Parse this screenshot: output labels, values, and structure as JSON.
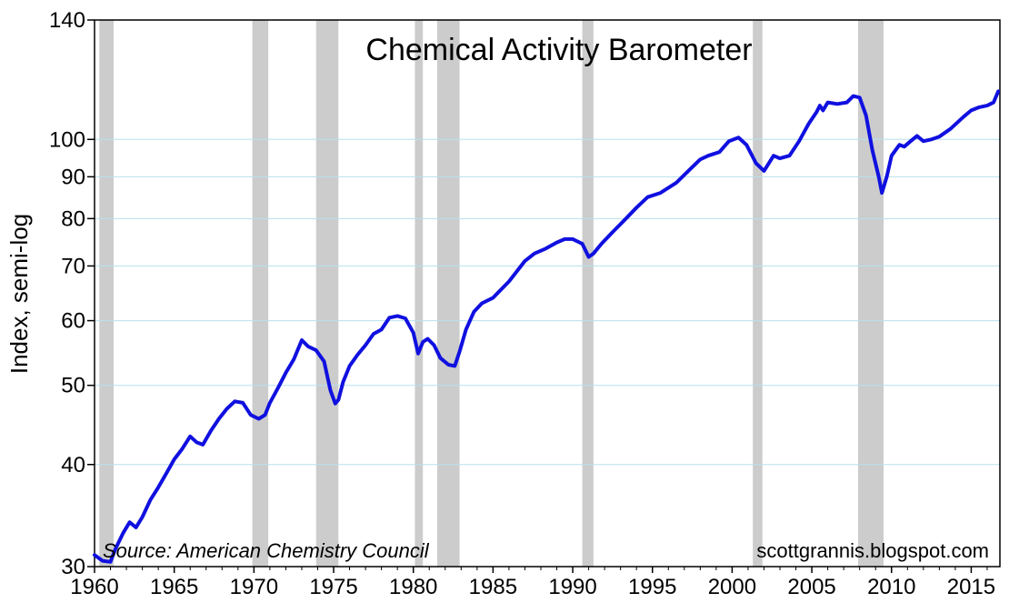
{
  "chart_data": {
    "type": "line",
    "title": "Chemical Activity Barometer",
    "ylabel": "Index, semi-log",
    "xlabel": "",
    "y_scale": "log",
    "ylim": [
      30,
      140
    ],
    "xlim": [
      1960,
      2016.8
    ],
    "y_ticks": [
      30,
      40,
      50,
      60,
      70,
      80,
      90,
      100,
      140
    ],
    "x_ticks": [
      1960,
      1965,
      1970,
      1975,
      1980,
      1985,
      1990,
      1995,
      2000,
      2005,
      2010,
      2015
    ],
    "grid": "horizontal",
    "line_color": "#1010e0",
    "shading_color": "#cccccc",
    "annotations": {
      "source": "Source: American Chemistry Council",
      "credit": "scottgrannis.blogspot.com"
    },
    "recession_periods": [
      [
        1960.3,
        1961.2
      ],
      [
        1969.9,
        1970.9
      ],
      [
        1973.9,
        1975.3
      ],
      [
        1980.1,
        1980.6
      ],
      [
        1981.5,
        1982.9
      ],
      [
        1990.6,
        1991.3
      ],
      [
        2001.3,
        2001.9
      ],
      [
        2007.9,
        2009.5
      ]
    ],
    "series": [
      {
        "x": [
          1960.0,
          1960.5,
          1961.0,
          1961.3,
          1961.8,
          1962.2,
          1962.6,
          1963.0,
          1963.5,
          1964.0,
          1964.5,
          1965.0,
          1965.5,
          1966.0,
          1966.4,
          1966.8,
          1967.3,
          1967.8,
          1968.3,
          1968.8,
          1969.3,
          1969.8,
          1970.3,
          1970.7,
          1971.0,
          1971.5,
          1972.0,
          1972.5,
          1973.0,
          1973.4,
          1973.9,
          1974.4,
          1974.8,
          1975.1,
          1975.3,
          1975.6,
          1976.0,
          1976.5,
          1977.0,
          1977.5,
          1978.0,
          1978.5,
          1979.0,
          1979.5,
          1980.0,
          1980.3,
          1980.6,
          1980.9,
          1981.3,
          1981.7,
          1982.2,
          1982.6,
          1982.9,
          1983.3,
          1983.8,
          1984.3,
          1985.0,
          1986.0,
          1987.0,
          1987.6,
          1988.3,
          1989.0,
          1989.5,
          1990.0,
          1990.6,
          1991.0,
          1991.3,
          1991.8,
          1992.5,
          1993.2,
          1994.0,
          1994.7,
          1995.5,
          1996.5,
          1997.5,
          1998.0,
          1998.5,
          1999.2,
          1999.8,
          2000.4,
          2000.9,
          2001.5,
          2002.0,
          2002.6,
          2003.0,
          2003.6,
          2004.2,
          2004.8,
          2005.3,
          2005.5,
          2005.7,
          2006.0,
          2006.6,
          2007.2,
          2007.6,
          2008.0,
          2008.4,
          2008.8,
          2009.2,
          2009.4,
          2009.7,
          2010.0,
          2010.5,
          2010.8,
          2011.2,
          2011.6,
          2012.0,
          2012.5,
          2013.0,
          2013.7,
          2014.5,
          2015.0,
          2015.5,
          2016.0,
          2016.4,
          2016.7
        ],
        "values": [
          31.0,
          30.5,
          30.4,
          31.5,
          33.0,
          34.0,
          33.5,
          34.5,
          36.2,
          37.5,
          39.0,
          40.6,
          41.8,
          43.3,
          42.6,
          42.3,
          44.0,
          45.5,
          46.8,
          47.8,
          47.6,
          46.0,
          45.5,
          46.0,
          47.6,
          49.6,
          51.8,
          53.8,
          56.8,
          55.8,
          55.2,
          53.5,
          49.3,
          47.5,
          48.0,
          50.5,
          52.8,
          54.5,
          56.0,
          57.8,
          58.5,
          60.5,
          60.8,
          60.4,
          58.0,
          54.7,
          56.5,
          57.0,
          56.0,
          54.0,
          53.0,
          52.8,
          55.0,
          58.5,
          61.5,
          63.0,
          64.0,
          67.0,
          71.0,
          72.5,
          73.5,
          74.8,
          75.5,
          75.5,
          74.5,
          71.8,
          72.5,
          74.5,
          77.0,
          79.5,
          82.5,
          85.0,
          86.0,
          88.5,
          92.5,
          94.5,
          95.5,
          96.5,
          99.5,
          100.5,
          98.5,
          93.5,
          91.5,
          95.5,
          94.8,
          95.5,
          99.5,
          104.5,
          108.0,
          110.0,
          108.5,
          111.0,
          110.5,
          111.0,
          113.0,
          112.5,
          107.0,
          97.0,
          90.0,
          86.0,
          90.0,
          95.5,
          98.5,
          98.0,
          99.5,
          101.0,
          99.5,
          100.0,
          100.8,
          103.0,
          106.5,
          108.5,
          109.5,
          110.0,
          111.0,
          114.5
        ]
      }
    ]
  }
}
